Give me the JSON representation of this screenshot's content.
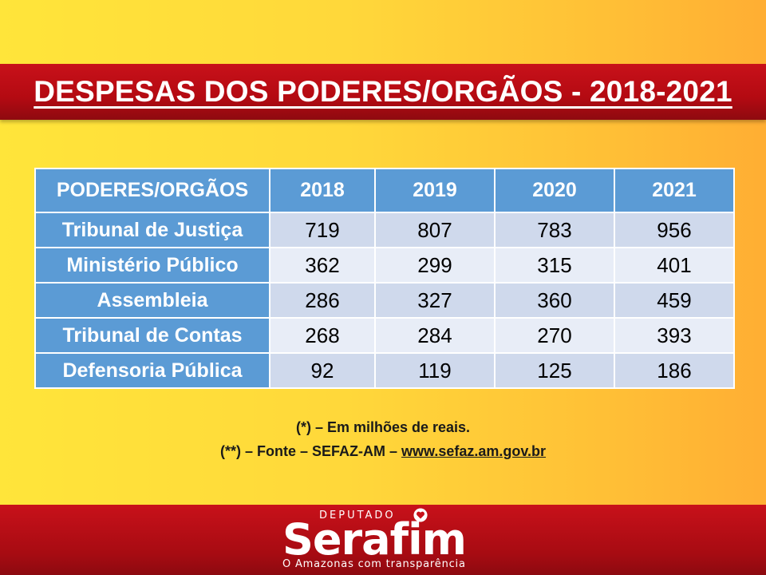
{
  "title": "DESPESAS DOS PODERES/ORGÃOS - 2018-2021",
  "table": {
    "headers": [
      "PODERES/ORGÃOS",
      "2018",
      "2019",
      "2020",
      "2021"
    ],
    "rows": [
      {
        "label": "Tribunal de Justiça",
        "values": [
          "719",
          "807",
          "783",
          "956"
        ]
      },
      {
        "label": "Ministério Público",
        "values": [
          "362",
          "299",
          "315",
          "401"
        ]
      },
      {
        "label": "Assembleia",
        "values": [
          "286",
          "327",
          "360",
          "459"
        ]
      },
      {
        "label": "Tribunal de Contas",
        "values": [
          "268",
          "284",
          "270",
          "393"
        ]
      },
      {
        "label": "Defensoria Pública",
        "values": [
          "92",
          "119",
          "125",
          "186"
        ]
      }
    ]
  },
  "notes": {
    "note1": "(*) – Em milhões de reais.",
    "note2_prefix": "(**) – Fonte – SEFAZ-AM – ",
    "note2_link": "www.sefaz.am.gov.br"
  },
  "logo": {
    "deputado": "DEPUTADO",
    "brand": "Serafim",
    "slogan": "O Amazonas com transparência",
    "icon": "heart-icon"
  },
  "colors": {
    "band_red": "#c8111a",
    "header_blue": "#5b9bd5",
    "row_light_a": "#cfd9ec",
    "row_light_b": "#e8edf7",
    "background_yellow": "#ffd83a"
  }
}
